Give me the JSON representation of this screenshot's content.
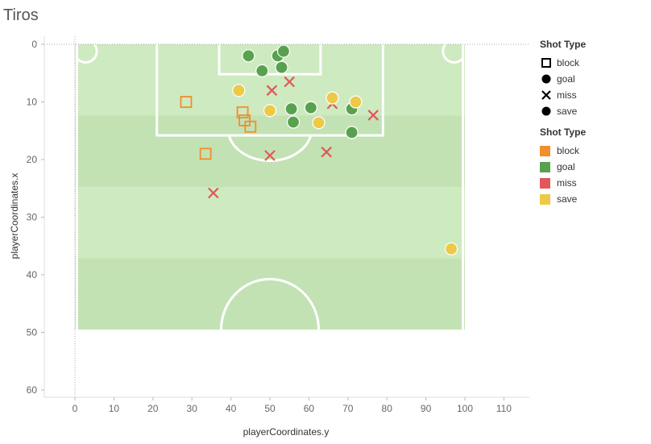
{
  "title": "Tiros",
  "legend_shapes": {
    "title": "Shot Type",
    "items": [
      {
        "label": "block",
        "icon": "square-outline-icon"
      },
      {
        "label": "goal",
        "icon": "circle-icon"
      },
      {
        "label": "miss",
        "icon": "cross-icon"
      },
      {
        "label": "save",
        "icon": "circle-icon"
      }
    ]
  },
  "legend_colors": {
    "title": "Shot Type",
    "items": [
      {
        "label": "block",
        "color": "#f28e2b"
      },
      {
        "label": "goal",
        "color": "#59a14f"
      },
      {
        "label": "miss",
        "color": "#e15759"
      },
      {
        "label": "save",
        "color": "#edc948"
      }
    ]
  },
  "chart_data": {
    "type": "scatter",
    "title": "Tiros",
    "xlabel": "playerCoordinates.y",
    "ylabel": "playerCoordinates.x",
    "xlim": [
      -8,
      116
    ],
    "ylim": [
      0,
      61
    ],
    "y_inverted": true,
    "xticks": [
      0,
      10,
      20,
      30,
      40,
      50,
      60,
      70,
      80,
      90,
      100,
      110
    ],
    "yticks": [
      0,
      10,
      20,
      30,
      40,
      50,
      60
    ],
    "series": [
      {
        "name": "block",
        "shape": "square",
        "color": "#f28e2b",
        "points": [
          [
            28.5,
            10
          ],
          [
            43,
            11.8
          ],
          [
            43.5,
            13.2
          ],
          [
            45,
            14.3
          ],
          [
            33.5,
            19
          ]
        ]
      },
      {
        "name": "goal",
        "shape": "circle",
        "color": "#59a14f",
        "points": [
          [
            44.5,
            2
          ],
          [
            52,
            2
          ],
          [
            53.5,
            1.2
          ],
          [
            53,
            4
          ],
          [
            48,
            4.6
          ],
          [
            55.5,
            11.2
          ],
          [
            60.5,
            11
          ],
          [
            71,
            11.2
          ],
          [
            56,
            13.5
          ],
          [
            71,
            15.3
          ]
        ]
      },
      {
        "name": "miss",
        "shape": "cross",
        "color": "#e15759",
        "points": [
          [
            55,
            6.5
          ],
          [
            50.5,
            8
          ],
          [
            66,
            10.3
          ],
          [
            76.5,
            12.3
          ],
          [
            50,
            19.3
          ],
          [
            64.5,
            18.7
          ],
          [
            35.5,
            25.8
          ]
        ]
      },
      {
        "name": "save",
        "shape": "circle",
        "color": "#edc948",
        "points": [
          [
            42,
            8
          ],
          [
            66,
            9.3
          ],
          [
            72,
            10
          ],
          [
            50,
            11.5
          ],
          [
            62.5,
            13.6
          ],
          [
            96.5,
            35.5
          ]
        ]
      }
    ]
  }
}
